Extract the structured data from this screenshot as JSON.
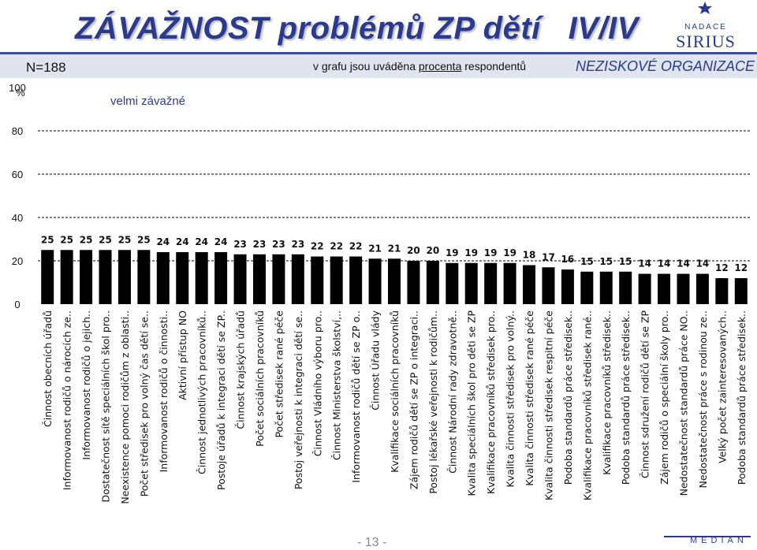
{
  "title": "ZÁVAŽNOST problémů ZP dětí   IV/IV",
  "n_label": "N=188",
  "subtitle_parts": [
    "v grafu jsou uváděna ",
    "procenta",
    " respondentů"
  ],
  "org_label": "NEZISKOVÉ ORGANIZACE",
  "logo_top": {
    "small": "NADACE",
    "big": "SIRIUS"
  },
  "logo_bottom": "MEDIAN",
  "page_number": "- 13 -",
  "colors": {
    "bar": "#000000",
    "title": "#2b3a8c",
    "band": "#dfe4ee",
    "grid": "#000000"
  },
  "chart_data": {
    "type": "bar",
    "unit_label": "%",
    "legend": "velmi závažné",
    "ylim": [
      0,
      100
    ],
    "yticks": [
      0,
      20,
      40,
      60,
      80,
      100
    ],
    "grid": "dashed",
    "categories": [
      "Činnost obecních úřadů",
      "Informovanost rodičů o nárocích ze..",
      "Informovanost rodičů o jejich..",
      "Dostatečnost sítě speciálních škol pro..",
      "Neexistence pomoci rodičům z oblasti..",
      "Počet středisek pro volný čas dětí se..",
      "Informovanost rodičů o činnosti..",
      "Aktivní přístup NO",
      "Činnost jednotlivých pracovníků..",
      "Postoje úřadů k integraci dětí se ZP..",
      "Činnost krajských úřadů",
      "Počet sociálních pracovníků",
      "Počet středisek rané péče",
      "Postoj veřejnosti k integraci dětí se..",
      "Činnost Vládního výboru pro..",
      "Činnost Ministerstva školství,..",
      "Informovanost rodičů dětí se ZP o..",
      "Činnost Úřadu vlády",
      "Kvalifikace sociálních pracovníků",
      "Zájem rodičů dětí se ZP o integraci..",
      "Postoj lékařské veřejnosti k rodičům..",
      "Činnost Národní rady zdravotně..",
      "Kvalita speciálních škol pro děti se ZP",
      "Kvalifikace pracovníků středisek pro..",
      "Kvalita činnosti středisek pro volný..",
      "Kvalita činnosti středisek rané péče",
      "Kvalita činnosti středisek respitní péče",
      "Podoba standardů práce středisek..",
      "Kvalifikace pracovníků středisek rané..",
      "Kvalifikace pracovníků středisek..",
      "Podoba standardů práce středisek..",
      "Činnost sdružení rodičů dětí se ZP",
      "Zájem rodičů o speciální školy pro..",
      "Nedostatečnost standardů práce NO..",
      "Nedostatečnost práce s rodinou ze..",
      "Velký počet zainteresovaných..",
      "Podoba standardů práce středisek.."
    ],
    "values": [
      25,
      25,
      25,
      25,
      25,
      25,
      24,
      24,
      24,
      24,
      23,
      23,
      23,
      23,
      22,
      22,
      22,
      21,
      21,
      20,
      20,
      19,
      19,
      19,
      19,
      18,
      17,
      16,
      15,
      15,
      15,
      14,
      14,
      14,
      14,
      12,
      12
    ]
  }
}
